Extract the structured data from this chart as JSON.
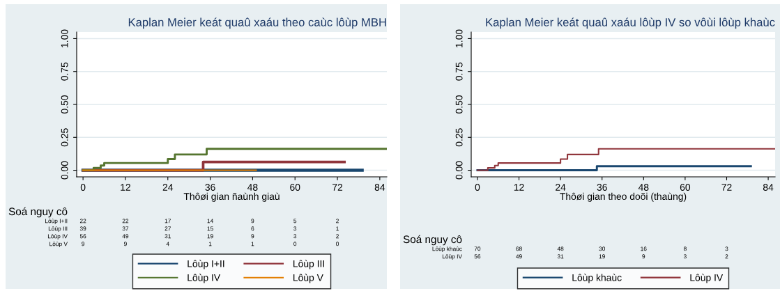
{
  "chart_data": [
    {
      "type": "step",
      "title": "Kaplan Meier keát quaû xaáu theo caùc lôùp MBH",
      "xlabel": "Thôøi gian ñaùnh giaù",
      "xlim": [
        -1.8,
        86
      ],
      "xticks": [
        0,
        12,
        24,
        36,
        48,
        60,
        72,
        84
      ],
      "ylim": [
        -0.05,
        1.05
      ],
      "yticks": [
        {
          "value": 0,
          "label": "0.00"
        },
        {
          "value": 0.25,
          "label": "0.25"
        },
        {
          "value": 0.5,
          "label": "0.50"
        },
        {
          "value": 0.75,
          "label": "0.75"
        },
        {
          "value": 1,
          "label": "1.00"
        }
      ],
      "grid": "y",
      "legend": "bottom",
      "series": [
        {
          "name": "Lôùp I+II",
          "color": "#1a476f",
          "x": [
            0,
            79
          ],
          "values": [
            0,
            0
          ]
        },
        {
          "name": "Lôùp III",
          "color": "#90353b",
          "x": [
            0,
            34,
            74
          ],
          "values": [
            0,
            0.063,
            0.063
          ]
        },
        {
          "name": "Lôùp IV",
          "color": "#55752f",
          "x": [
            0,
            3,
            5,
            6,
            24,
            26,
            35,
            86
          ],
          "values": [
            0,
            0.018,
            0.036,
            0.055,
            0.085,
            0.12,
            0.163,
            0.163
          ]
        },
        {
          "name": "Lôùp V",
          "color": "#e37e00",
          "x": [
            0,
            49
          ],
          "values": [
            0,
            0
          ]
        }
      ],
      "annotations": [
        "Soá nguy cô",
        "Lôùp I+II",
        "22",
        "22",
        "17",
        "14",
        "9",
        "5",
        "2",
        "Lôùp III",
        "39",
        "37",
        "27",
        "15",
        "6",
        "3",
        "1",
        "Lôùp IV",
        "56",
        "49",
        "31",
        "19",
        "9",
        "3",
        "2",
        "Lôùp V",
        "9",
        "9",
        "4",
        "1",
        "1",
        "0",
        "0"
      ]
    },
    {
      "type": "step",
      "title": "Kaplan Meier keát quaû xaáu lôùp IV so vôùi lôùp khaùc",
      "xlabel": "Thôøi gian theo doõi (thaùng)",
      "xlim": [
        -1.8,
        86
      ],
      "xticks": [
        0,
        12,
        24,
        36,
        48,
        60,
        72,
        84
      ],
      "ylim": [
        -0.05,
        1.05
      ],
      "yticks": [
        {
          "value": 0,
          "label": "0.00"
        },
        {
          "value": 0.25,
          "label": "0.25"
        },
        {
          "value": 0.5,
          "label": "0.50"
        },
        {
          "value": 0.75,
          "label": "0.75"
        },
        {
          "value": 1,
          "label": "1.00"
        }
      ],
      "grid": "y",
      "legend": "bottom",
      "series": [
        {
          "name": "Lôùp khaùc",
          "color": "#1a476f",
          "x": [
            0,
            34.5,
            79
          ],
          "values": [
            0,
            0.031,
            0.031
          ]
        },
        {
          "name": "Lôùp IV",
          "color": "#90353b",
          "x": [
            0,
            3,
            5,
            6,
            24,
            26,
            35,
            86
          ],
          "values": [
            0,
            0.018,
            0.036,
            0.055,
            0.085,
            0.12,
            0.163,
            0.163
          ]
        }
      ],
      "annotations": [
        "Soá nguy cô",
        "Lôùp khaùc",
        "70",
        "68",
        "48",
        "30",
        "16",
        "8",
        "3",
        "Lôùp IV",
        "56",
        "49",
        "31",
        "19",
        "9",
        "3",
        "2"
      ]
    }
  ]
}
